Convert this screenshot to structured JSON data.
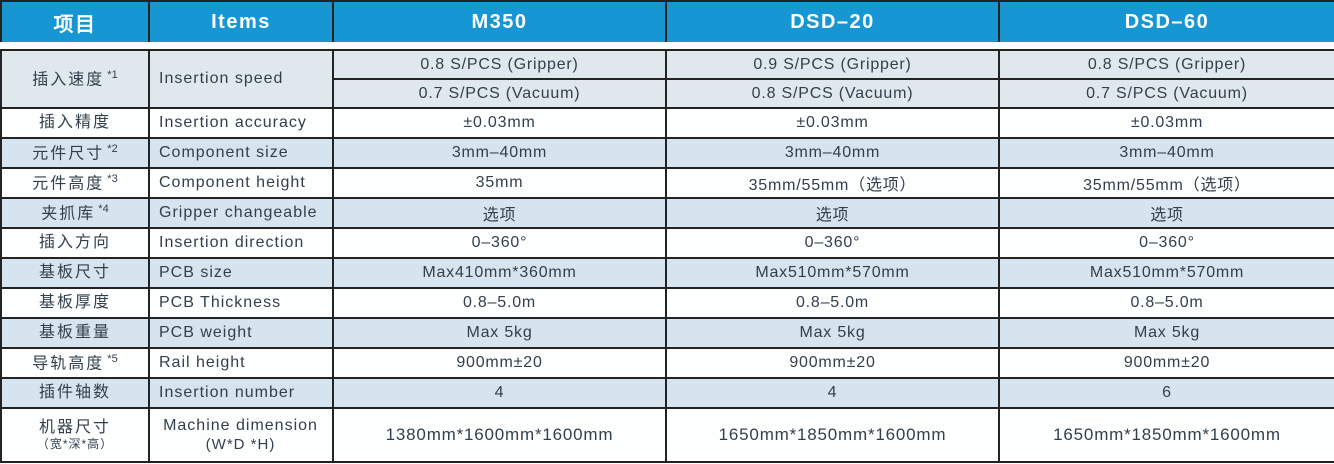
{
  "colors": {
    "header_bg": "#1697d4",
    "header_text": "#ffffff",
    "stripe": "#d5e4ee",
    "speed_stripe": "#dfe8ec",
    "row_plain": "#fdfefe",
    "border": "#232323",
    "text": "#33404c"
  },
  "header": {
    "col_cn": "项目",
    "col_en": "Items",
    "models": [
      "M350",
      "DSD–20",
      "DSD–60"
    ]
  },
  "rows": [
    {
      "id": "insertion-speed",
      "cn": "插入速度",
      "note": "*1",
      "en": "Insertion speed",
      "shaded": true,
      "sub": [
        [
          "0.8 S/PCS (Gripper)",
          "0.9 S/PCS (Gripper)",
          "0.8 S/PCS (Gripper)"
        ],
        [
          "0.7 S/PCS (Vacuum)",
          "0.8 S/PCS (Vacuum)",
          "0.7 S/PCS (Vacuum)"
        ]
      ]
    },
    {
      "id": "insertion-accuracy",
      "cn": "插入精度",
      "note": "",
      "en": "Insertion accuracy",
      "shaded": false,
      "values": [
        "±0.03mm",
        "±0.03mm",
        "±0.03mm"
      ]
    },
    {
      "id": "component-size",
      "cn": "元件尺寸",
      "note": "*2",
      "en": "Component size",
      "shaded": true,
      "values": [
        "3mm–40mm",
        "3mm–40mm",
        "3mm–40mm"
      ]
    },
    {
      "id": "component-height",
      "cn": "元件高度",
      "note": "*3",
      "en": "Component height",
      "shaded": false,
      "values": [
        "35mm",
        "35mm/55mm（选项）",
        "35mm/55mm（选项）"
      ]
    },
    {
      "id": "gripper-changeable",
      "cn": "夹抓库",
      "note": "*4",
      "en": "Gripper changeable",
      "shaded": true,
      "values": [
        "选项",
        "选项",
        "选项"
      ]
    },
    {
      "id": "insertion-direction",
      "cn": "插入方向",
      "note": "",
      "en": "Insertion direction",
      "shaded": false,
      "values": [
        "0–360°",
        "0–360°",
        "0–360°"
      ]
    },
    {
      "id": "pcb-size",
      "cn": "基板尺寸",
      "note": "",
      "en": "PCB size",
      "shaded": true,
      "values": [
        "Max410mm*360mm",
        "Max510mm*570mm",
        "Max510mm*570mm"
      ]
    },
    {
      "id": "pcb-thickness",
      "cn": "基板厚度",
      "note": "",
      "en": "PCB Thickness",
      "shaded": false,
      "values": [
        "0.8–5.0m",
        "0.8–5.0m",
        "0.8–5.0m"
      ]
    },
    {
      "id": "pcb-weight",
      "cn": "基板重量",
      "note": "",
      "en": "PCB weight",
      "shaded": true,
      "values": [
        "Max 5kg",
        "Max 5kg",
        "Max 5kg"
      ]
    },
    {
      "id": "rail-height",
      "cn": "导轨高度",
      "note": "*5",
      "en": "Rail height",
      "shaded": false,
      "values": [
        "900mm±20",
        "900mm±20",
        "900mm±20"
      ]
    },
    {
      "id": "insertion-number",
      "cn": "插件轴数",
      "note": "",
      "en": "Insertion number",
      "shaded": true,
      "values": [
        "4",
        "4",
        "6"
      ]
    },
    {
      "id": "machine-dimension",
      "cn": "机器尺寸",
      "cn2": "（宽*深*高）",
      "note": "",
      "en": "Machine dimension",
      "en2": "(W*D *H)",
      "shaded": false,
      "tall": true,
      "values": [
        "1380mm*1600mm*1600mm",
        "1650mm*1850mm*1600mm",
        "1650mm*1850mm*1600mm"
      ]
    }
  ]
}
